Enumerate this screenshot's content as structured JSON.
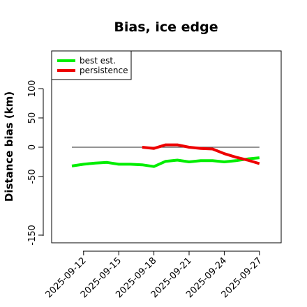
{
  "chart_data": {
    "type": "line",
    "title": "Bias, ice edge",
    "xlabel": "",
    "ylabel": "Distance bias (km)",
    "x_ticks": [
      "2025-09-12",
      "2025-09-15",
      "2025-09-18",
      "2025-09-21",
      "2025-09-24",
      "2025-09-27"
    ],
    "y_ticks": [
      -150,
      -50,
      0,
      50,
      100
    ],
    "ylim": [
      -160,
      160
    ],
    "grid": false,
    "legend_position": "top-left",
    "reference_line": {
      "y": 0,
      "from": "2025-09-11",
      "to": "2025-09-27",
      "color": "#555555"
    },
    "series": [
      {
        "name": "best est.",
        "color": "#00ee00",
        "x": [
          "2025-09-11",
          "2025-09-12",
          "2025-09-13",
          "2025-09-14",
          "2025-09-15",
          "2025-09-16",
          "2025-09-17",
          "2025-09-18",
          "2025-09-19",
          "2025-09-20",
          "2025-09-21",
          "2025-09-22",
          "2025-09-23",
          "2025-09-24",
          "2025-09-25",
          "2025-09-26",
          "2025-09-27"
        ],
        "values": [
          -32,
          -29,
          -27,
          -26,
          -29,
          -29,
          -30,
          -33,
          -24,
          -22,
          -25,
          -23,
          -23,
          -25,
          -23,
          -20,
          -18
        ]
      },
      {
        "name": "persistence",
        "color": "#ee0000",
        "x": [
          "2025-09-17",
          "2025-09-18",
          "2025-09-19",
          "2025-09-20",
          "2025-09-21",
          "2025-09-22",
          "2025-09-23",
          "2025-09-24",
          "2025-09-25",
          "2025-09-26",
          "2025-09-27"
        ],
        "values": [
          0,
          -2,
          4,
          4,
          0,
          -2,
          -3,
          -11,
          -17,
          -22,
          -28
        ]
      }
    ]
  }
}
